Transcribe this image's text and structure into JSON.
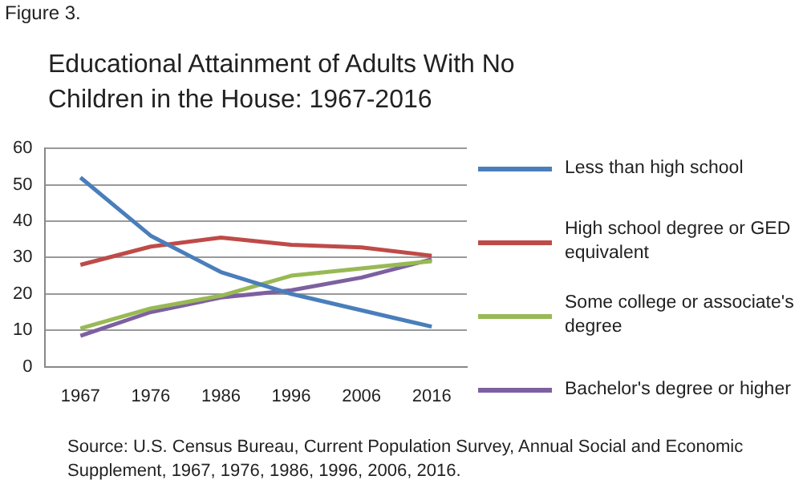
{
  "chart_data": {
    "type": "line",
    "title": "Educational Attainment of Adults With No Children in the House: 1967-2016",
    "categories": [
      "1967",
      "1976",
      "1986",
      "1996",
      "2006",
      "2016"
    ],
    "series": [
      {
        "name": "Less than high school",
        "color": "#4a7ebb",
        "values": [
          52,
          36,
          26,
          20,
          15.5,
          11
        ]
      },
      {
        "name": "High school degree or GED equivalent",
        "color": "#be4b48",
        "values": [
          28,
          33,
          35.5,
          33.5,
          32.8,
          30.5
        ]
      },
      {
        "name": "Some college or associate's degree",
        "color": "#98b954",
        "values": [
          10.5,
          16,
          19.5,
          25,
          27,
          29
        ]
      },
      {
        "name": "Bachelor's degree or higher",
        "color": "#7d60a0",
        "values": [
          8.5,
          15,
          19,
          21,
          24.5,
          29.5
        ]
      }
    ],
    "ylim": [
      0,
      60
    ],
    "yticks": [
      0,
      10,
      20,
      30,
      40,
      50,
      60
    ],
    "grid": "y",
    "legend": "right",
    "marker": "none",
    "line_style": "solid",
    "annotations": [
      "Figure 3.",
      "Source: U.S. Census Bureau, Current Population Survey, Annual Social and Economic Supplement,  1967, 1976, 1986, 1996, 2006, 2016."
    ]
  }
}
